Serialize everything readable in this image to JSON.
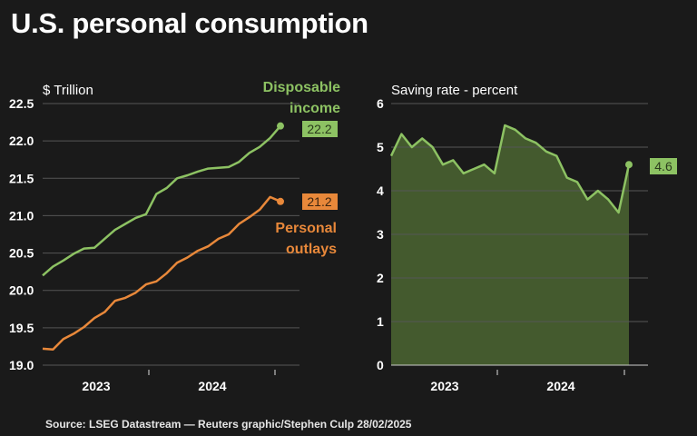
{
  "title": "U.S. personal consumption",
  "source": "Source: LSEG Datastream — Reuters graphic/Stephen Culp 28/02/2025",
  "colors": {
    "background": "#1a1a1a",
    "income": "#8dc263",
    "outlays": "#e8883a",
    "saving_fill": "#445a2e",
    "grid": "#555555"
  },
  "chart_data": [
    {
      "type": "line",
      "ylabel": "$ Trillion",
      "ylim": [
        19.0,
        22.5
      ],
      "yticks": [
        "19.0",
        "19.5",
        "20.0",
        "20.5",
        "21.0",
        "21.5",
        "22.0",
        "22.5"
      ],
      "xtick_labels": [
        "2023",
        "2024"
      ],
      "x_range": [
        "Feb 2023",
        "Jan 2025"
      ],
      "grid": true,
      "series": [
        {
          "name": "Disposable income",
          "end_label": "22.2",
          "values": [
            20.2,
            20.32,
            20.4,
            20.49,
            20.56,
            20.57,
            20.69,
            20.81,
            20.89,
            20.97,
            21.02,
            21.29,
            21.37,
            21.5,
            21.54,
            21.59,
            21.63,
            21.64,
            21.65,
            21.72,
            21.84,
            21.92,
            22.04,
            22.2
          ]
        },
        {
          "name": "Personal outlays",
          "end_label": "21.2",
          "values": [
            19.22,
            19.21,
            19.35,
            19.42,
            19.51,
            19.63,
            19.71,
            19.86,
            19.9,
            19.97,
            20.08,
            20.12,
            20.23,
            20.37,
            20.44,
            20.53,
            20.59,
            20.69,
            20.75,
            20.89,
            20.98,
            21.08,
            21.25,
            21.19
          ]
        }
      ],
      "legend": {
        "income_lines": [
          "Disposable",
          "income"
        ],
        "outlays_lines": [
          "Personal",
          "outlays"
        ]
      }
    },
    {
      "type": "area",
      "ylabel": "Saving rate - percent",
      "ylim": [
        0,
        6
      ],
      "yticks": [
        "0",
        "1",
        "2",
        "3",
        "4",
        "5",
        "6"
      ],
      "xtick_labels": [
        "2023",
        "2024"
      ],
      "x_range": [
        "Feb 2023",
        "Jan 2025"
      ],
      "grid": true,
      "series": [
        {
          "end_label": "4.6",
          "values": [
            4.8,
            5.3,
            5.0,
            5.2,
            5.0,
            4.6,
            4.7,
            4.4,
            4.5,
            4.6,
            4.4,
            5.5,
            5.4,
            5.2,
            5.1,
            4.9,
            4.8,
            4.3,
            4.2,
            3.8,
            4.0,
            3.8,
            3.5,
            4.6
          ]
        }
      ]
    }
  ]
}
